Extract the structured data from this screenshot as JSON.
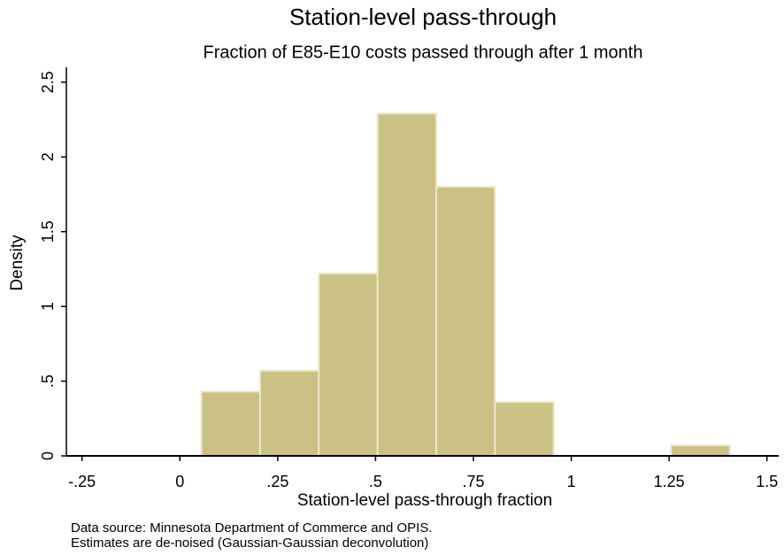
{
  "chart_data": {
    "type": "histogram",
    "title": "Station-level pass-through",
    "subtitle": "Fraction of E85-E10 costs passed through after 1 month",
    "x_label": "Station-level pass-through fraction",
    "y_label": "Density",
    "notes": [
      "Data source: Minnesota Department of Commerce and OPIS.",
      "Estimates are de-noised (Gaussian-Gaussian deconvolution)"
    ],
    "bins": [
      0.055,
      0.205,
      0.355,
      0.505,
      0.655,
      0.805,
      0.955,
      1.105,
      1.255,
      1.405
    ],
    "values": [
      0.43,
      0.57,
      1.22,
      2.29,
      1.8,
      0.36,
      0,
      0,
      0.07
    ],
    "color": "#cbc184",
    "xlim": [
      -0.29,
      1.53
    ],
    "ylim": [
      0,
      2.6
    ],
    "xticks": [
      {
        "value": -0.25,
        "label": "-.25"
      },
      0,
      {
        "value": 0.25,
        "label": ".25"
      },
      {
        "value": 0.5,
        "label": ".5"
      },
      {
        "value": 0.75,
        "label": ".75"
      },
      1,
      1.25,
      1.5
    ],
    "yticks": [
      0,
      {
        "value": 0.5,
        "label": ".5"
      },
      1,
      1.5,
      2,
      2.5
    ]
  }
}
